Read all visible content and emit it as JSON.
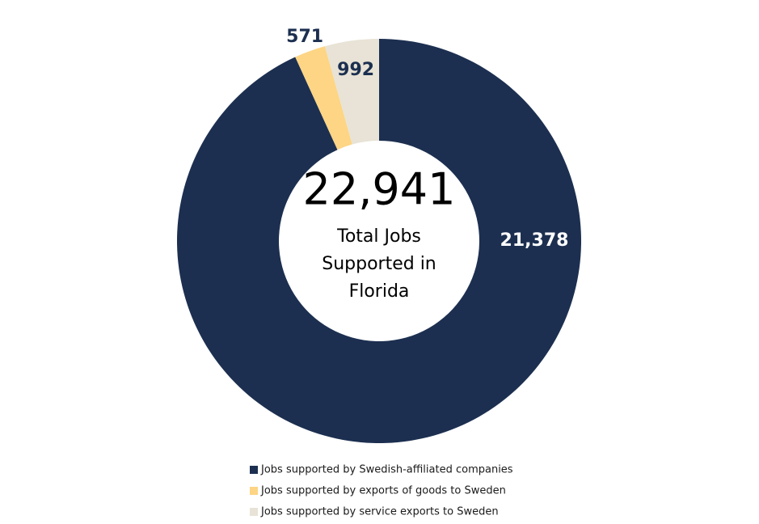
{
  "chart_data": {
    "type": "donut",
    "categories": [
      "Jobs supported by Swedish-affiliated companies",
      "Jobs supported by exports of goods to Sweden",
      "Jobs supported by service exports to Sweden"
    ],
    "values": [
      21378,
      571,
      992
    ],
    "value_labels": [
      "21,378",
      "571",
      "992"
    ],
    "colors": [
      "#1c2f50",
      "#fdd584",
      "#e8e3d6"
    ],
    "center_total": "22,941",
    "center_label": [
      "Total Jobs",
      "Supported in",
      "Florida"
    ],
    "legend": "bottom"
  }
}
